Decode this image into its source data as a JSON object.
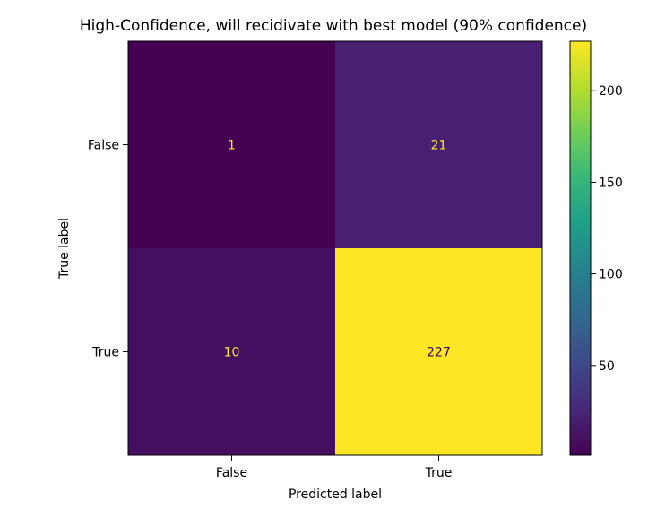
{
  "chart_data": {
    "type": "heatmap",
    "title": "High-Confidence, will recidivate with best model (90% confidence)",
    "xlabel": "Predicted label",
    "ylabel": "True label",
    "x_categories": [
      "False",
      "True"
    ],
    "y_categories": [
      "False",
      "True"
    ],
    "matrix": [
      [
        1,
        21
      ],
      [
        10,
        227
      ]
    ],
    "colormap": "viridis",
    "colorbar": {
      "range": [
        1,
        227
      ],
      "ticks": [
        50,
        100,
        150,
        200
      ]
    },
    "text_colors": {
      "on_dark": "#fde725",
      "on_light": "#440154"
    },
    "grid": false
  }
}
